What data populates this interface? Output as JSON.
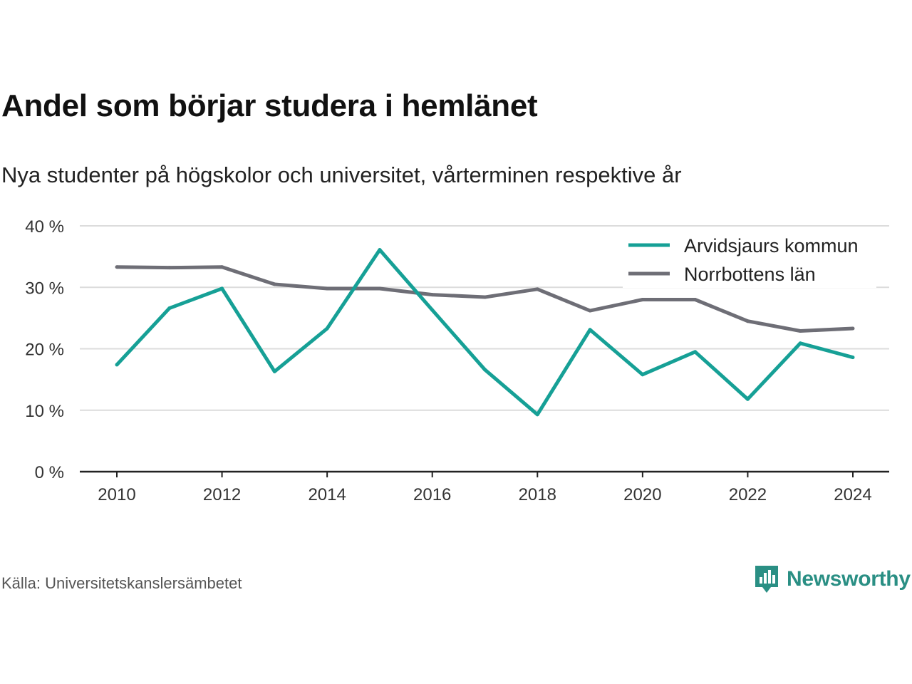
{
  "title": "Andel som börjar studera i hemlänet",
  "subtitle": "Nya studenter på högskolor och universitet, vårterminen respektive år",
  "source": "Källa: Universitetskanslersämbetet",
  "brand": {
    "name": "Newsworthy",
    "icon": "newsworthy-logo-icon",
    "color": "#2a8f84"
  },
  "chart_data": {
    "type": "line",
    "x": [
      2010,
      2011,
      2012,
      2013,
      2014,
      2015,
      2016,
      2017,
      2018,
      2019,
      2020,
      2021,
      2022,
      2023,
      2024
    ],
    "x_ticks": [
      2010,
      2012,
      2014,
      2016,
      2018,
      2020,
      2022,
      2024
    ],
    "y_ticks": [
      0,
      10,
      20,
      30,
      40
    ],
    "y_tick_labels": [
      "0 %",
      "10 %",
      "20 %",
      "30 %",
      "40 %"
    ],
    "ylim": [
      0,
      40
    ],
    "grid": true,
    "legend_position": "top-right",
    "series": [
      {
        "name": "Arvidsjaurs kommun",
        "color": "#16a096",
        "values": [
          17.4,
          26.6,
          29.8,
          16.3,
          23.3,
          36.1,
          26.3,
          16.6,
          9.3,
          23.1,
          15.8,
          19.5,
          11.8,
          20.9,
          18.6
        ]
      },
      {
        "name": "Norrbottens län",
        "color": "#6e6e76",
        "values": [
          33.3,
          33.2,
          33.3,
          30.5,
          29.8,
          29.8,
          28.8,
          28.4,
          29.7,
          26.2,
          28.0,
          28.0,
          24.5,
          22.9,
          23.3
        ]
      }
    ]
  }
}
